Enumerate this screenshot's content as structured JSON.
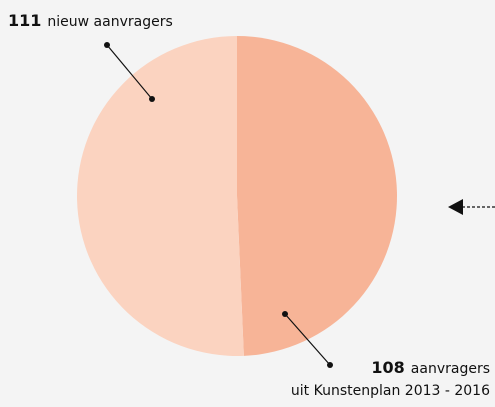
{
  "chart_data": {
    "type": "pie",
    "values": [
      111,
      108
    ],
    "labels": [
      "nieuw aanvragers",
      "aanvragers"
    ],
    "sublabels": [
      null,
      "uit Kunstenplan 2013 - 2016"
    ],
    "colors": [
      "#fbd3c0",
      "#f7b497"
    ]
  }
}
